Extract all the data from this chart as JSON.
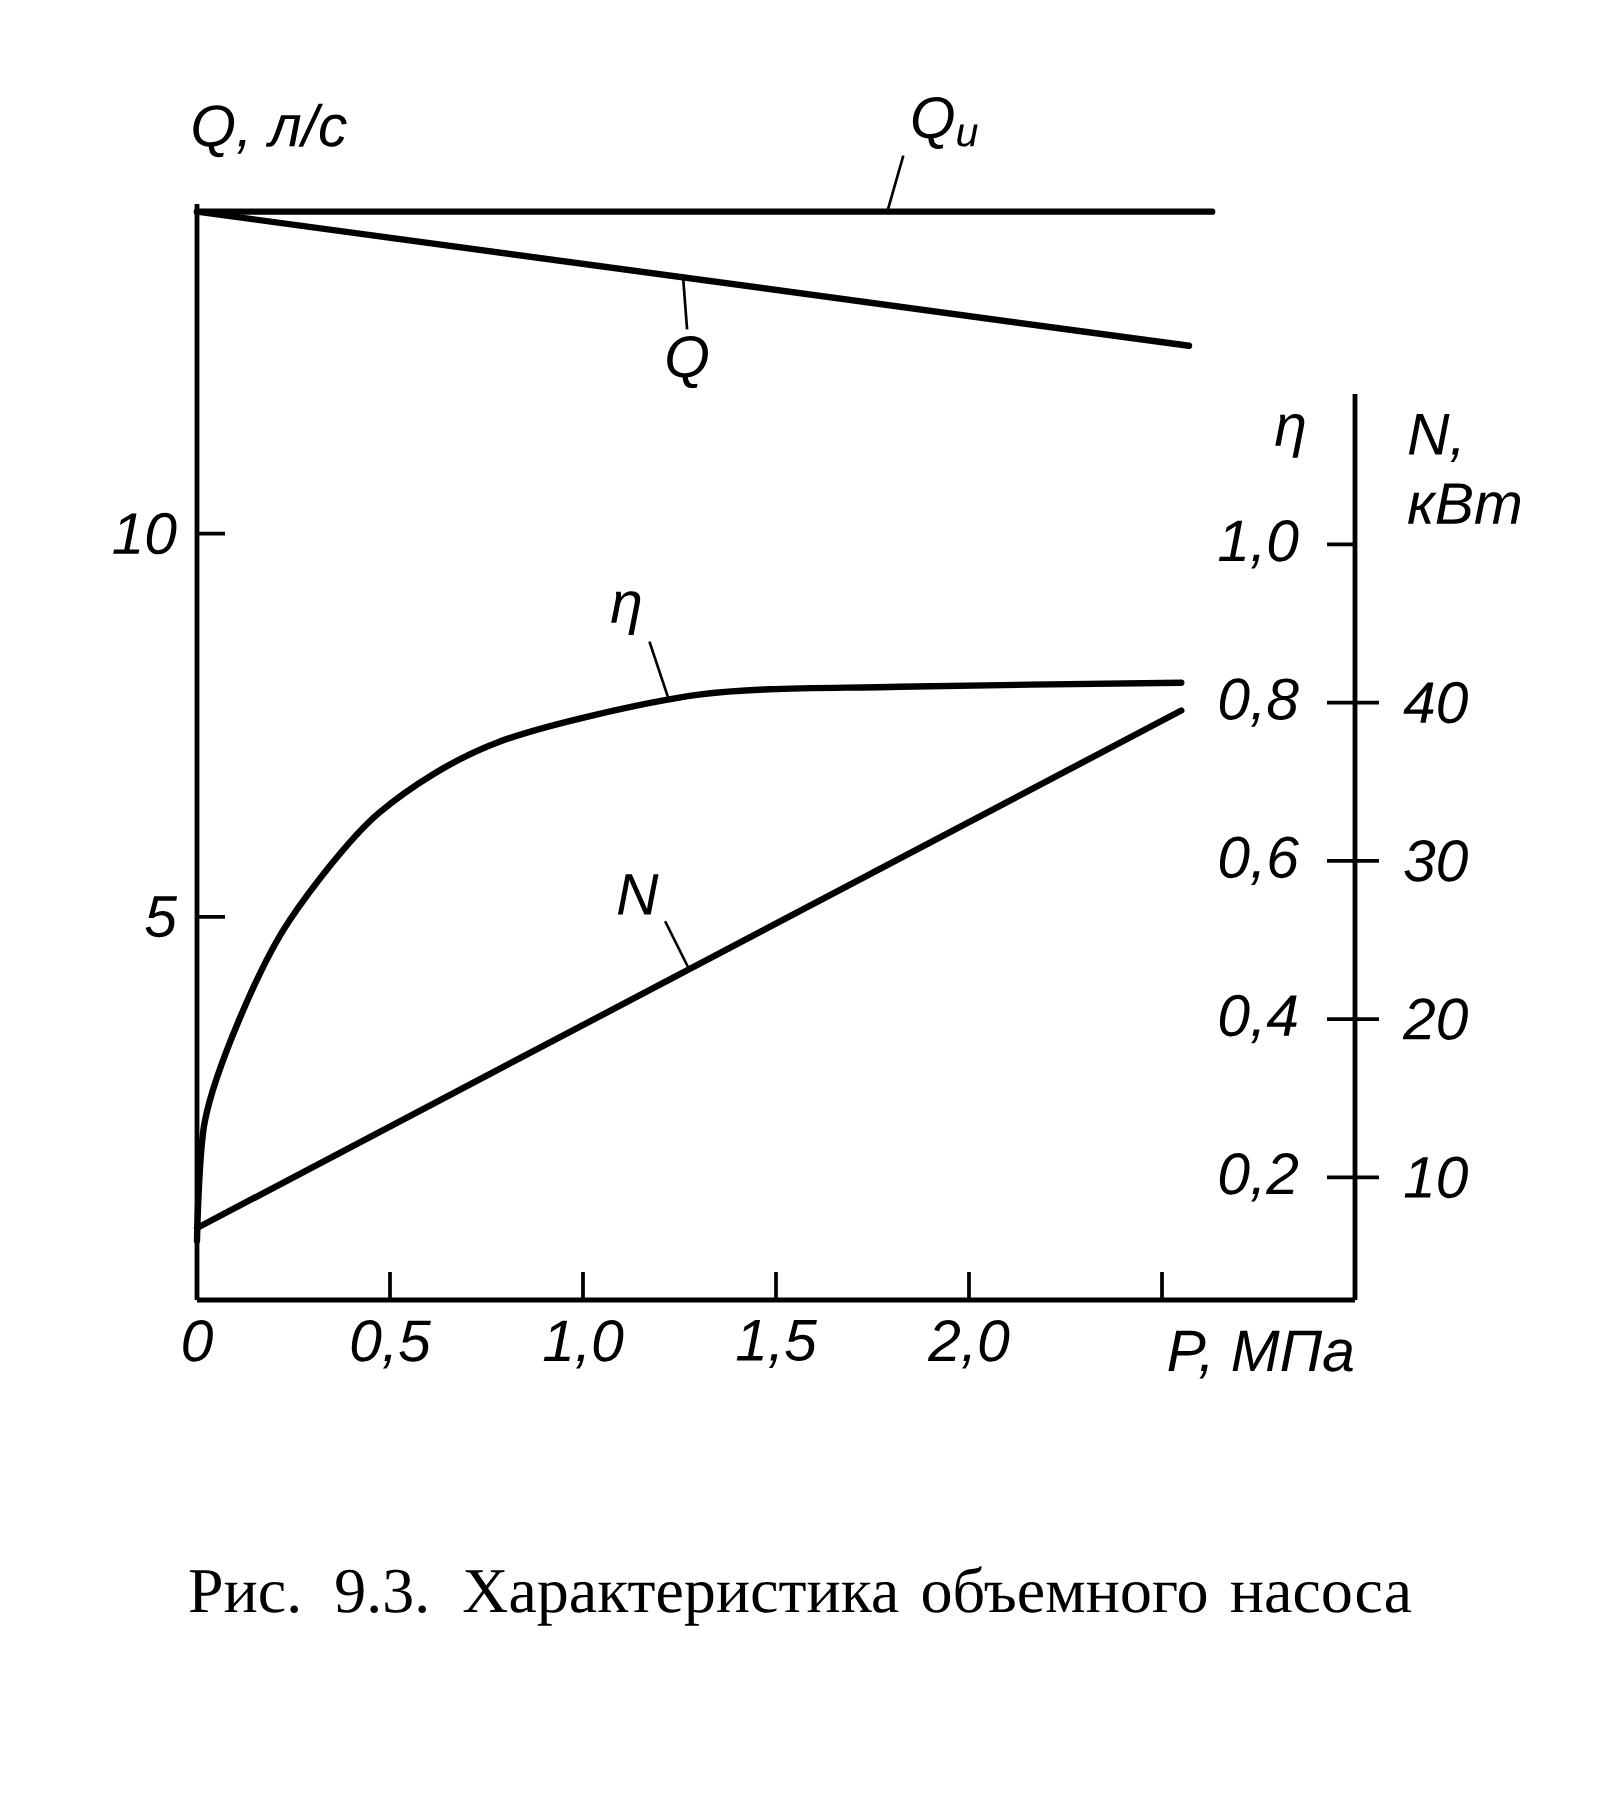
{
  "chart_data": {
    "type": "line",
    "xlabel": "P, МПа",
    "ylabel": "Q, л/с",
    "y2label": "η",
    "y3label": "N, кВт",
    "line_style": "solid",
    "xlim": [
      0,
      3.0
    ],
    "xticks": [
      0,
      {
        "value": 0.5,
        "label": "0,5"
      },
      {
        "value": 1.0,
        "label": "1,0"
      },
      {
        "value": 1.5,
        "label": "1,5"
      },
      {
        "value": 2.0,
        "label": "2,0"
      },
      {
        "value": 2.5,
        "label": null
      }
    ],
    "ylim": [
      0,
      14.3
    ],
    "yticks": [
      5,
      10
    ],
    "y2lim": [
      0.045,
      1.19
    ],
    "y2ticks": [
      {
        "value": 0.2,
        "label": "0,2"
      },
      {
        "value": 0.4,
        "label": "0,4"
      },
      {
        "value": 0.6,
        "label": "0,6"
      },
      {
        "value": 0.8,
        "label": "0,8"
      },
      {
        "value": 1.0,
        "label": "1,0"
      }
    ],
    "y3lim": [
      2.25,
      59.5
    ],
    "y3ticks": [
      10,
      20,
      30,
      40
    ],
    "series": [
      {
        "name": "Q$_{и}$",
        "color": "#000000",
        "x": [
          0,
          2.63
        ],
        "values": [
          14.2,
          14.2
        ]
      },
      {
        "name": "Q",
        "color": "#000000",
        "x": [
          0,
          2.57
        ],
        "values": [
          14.2,
          12.45
        ]
      },
      {
        "name": "η",
        "color": "#000000",
        "axis": "y2",
        "x": [
          0,
          0.02,
          0.11,
          0.24,
          0.47,
          0.78,
          1.3,
          1.82,
          2.55
        ],
        "values": [
          0.12,
          0.27,
          0.4,
          0.525,
          0.66,
          0.75,
          0.81,
          0.82,
          0.825
        ]
      },
      {
        "name": "N",
        "color": "#000000",
        "axis": "y3",
        "x": [
          0,
          2.55
        ],
        "values": [
          6.8,
          39.5
        ]
      }
    ],
    "annotations": [
      "Рис. 9.3. Характеристика объемного насоса"
    ]
  }
}
